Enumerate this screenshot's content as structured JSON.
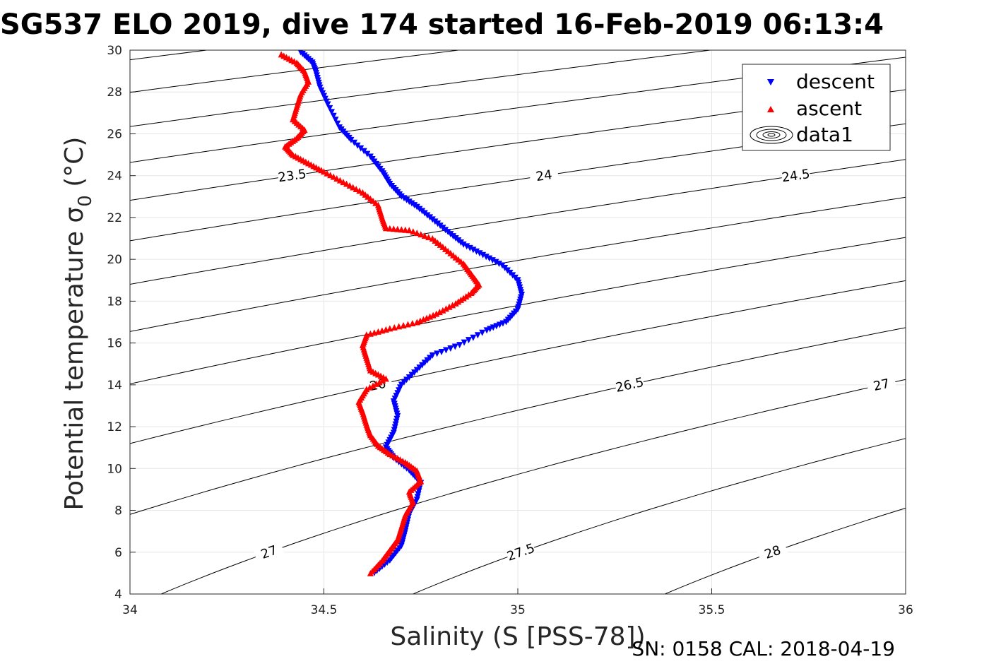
{
  "chart_data": {
    "type": "scatter",
    "title": "SG537 ELO 2019, dive 174 started 16-Feb-2019 06:13:4",
    "xlabel": "Salinity (S [PSS-78])",
    "ylabel": "Potential temperature σ",
    "ylabel_sub": "0",
    "ylabel_unit": " (°C)",
    "footer": "SN: 0158  CAL: 2018-04-19",
    "xlim": [
      34,
      36
    ],
    "ylim": [
      4,
      30
    ],
    "grid": true,
    "x_ticks": [
      "34",
      "34.5",
      "35",
      "35.5",
      "36"
    ],
    "y_ticks": [
      "4",
      "6",
      "8",
      "10",
      "12",
      "14",
      "16",
      "18",
      "20",
      "22",
      "24",
      "26",
      "28",
      "30"
    ],
    "legend": {
      "position": "top-right",
      "entries": [
        {
          "label": "descent",
          "color": "#0000ff",
          "marker": "triangle-down"
        },
        {
          "label": "ascent",
          "color": "#ff0000",
          "marker": "triangle-up"
        },
        {
          "label": "data1",
          "color": "#000000",
          "marker": "contour"
        }
      ]
    },
    "density_contours": [
      "21.5",
      "22",
      "22.5",
      "23",
      "23.5",
      "24",
      "24.5",
      "25",
      "25.5",
      "26",
      "26.5",
      "27",
      "27.5",
      "28"
    ],
    "series": [
      {
        "name": "descent",
        "color": "#0000ff",
        "points": [
          [
            34.44,
            29.9
          ],
          [
            34.47,
            29.4
          ],
          [
            34.48,
            28.9
          ],
          [
            34.49,
            28.2
          ],
          [
            34.51,
            27.4
          ],
          [
            34.54,
            26.3
          ],
          [
            34.57,
            25.7
          ],
          [
            34.62,
            24.9
          ],
          [
            34.65,
            24.2
          ],
          [
            34.67,
            23.6
          ],
          [
            34.7,
            23.0
          ],
          [
            34.74,
            22.5
          ],
          [
            34.78,
            21.9
          ],
          [
            34.82,
            21.3
          ],
          [
            34.86,
            20.7
          ],
          [
            34.91,
            20.2
          ],
          [
            34.96,
            19.7
          ],
          [
            35.0,
            19.0
          ],
          [
            35.01,
            18.3
          ],
          [
            35.0,
            17.6
          ],
          [
            34.97,
            17.0
          ],
          [
            34.92,
            16.6
          ],
          [
            34.85,
            15.9
          ],
          [
            34.78,
            15.4
          ],
          [
            34.74,
            14.7
          ],
          [
            34.7,
            14.0
          ],
          [
            34.68,
            13.2
          ],
          [
            34.69,
            12.5
          ],
          [
            34.68,
            11.7
          ],
          [
            34.66,
            11.0
          ],
          [
            34.68,
            10.5
          ],
          [
            34.72,
            9.9
          ],
          [
            34.75,
            9.3
          ],
          [
            34.74,
            8.5
          ],
          [
            34.72,
            7.8
          ],
          [
            34.71,
            7.0
          ],
          [
            34.7,
            6.3
          ],
          [
            34.67,
            5.6
          ],
          [
            34.63,
            5.0
          ]
        ]
      },
      {
        "name": "ascent",
        "color": "#ff0000",
        "points": [
          [
            34.39,
            29.8
          ],
          [
            34.43,
            29.4
          ],
          [
            34.45,
            29.0
          ],
          [
            34.46,
            28.5
          ],
          [
            34.44,
            27.9
          ],
          [
            34.43,
            27.3
          ],
          [
            34.42,
            26.7
          ],
          [
            34.45,
            26.2
          ],
          [
            34.43,
            25.8
          ],
          [
            34.4,
            25.4
          ],
          [
            34.42,
            25.0
          ],
          [
            34.46,
            24.6
          ],
          [
            34.5,
            24.2
          ],
          [
            34.55,
            23.7
          ],
          [
            34.6,
            23.2
          ],
          [
            34.64,
            22.6
          ],
          [
            34.65,
            22.0
          ],
          [
            34.66,
            21.5
          ],
          [
            34.72,
            21.4
          ],
          [
            34.78,
            21.0
          ],
          [
            34.82,
            20.4
          ],
          [
            34.86,
            19.8
          ],
          [
            34.88,
            19.3
          ],
          [
            34.9,
            18.8
          ],
          [
            34.88,
            18.4
          ],
          [
            34.84,
            17.9
          ],
          [
            34.79,
            17.4
          ],
          [
            34.74,
            17.0
          ],
          [
            34.67,
            16.7
          ],
          [
            34.61,
            16.4
          ],
          [
            34.6,
            15.9
          ],
          [
            34.61,
            15.3
          ],
          [
            34.62,
            14.7
          ],
          [
            34.66,
            14.3
          ],
          [
            34.61,
            13.8
          ],
          [
            34.59,
            13.2
          ],
          [
            34.6,
            12.7
          ],
          [
            34.61,
            12.1
          ],
          [
            34.62,
            11.6
          ],
          [
            34.64,
            11.1
          ],
          [
            34.67,
            10.7
          ],
          [
            34.71,
            10.3
          ],
          [
            34.74,
            9.9
          ],
          [
            34.75,
            9.4
          ],
          [
            34.72,
            8.9
          ],
          [
            34.73,
            8.4
          ],
          [
            34.71,
            7.8
          ],
          [
            34.7,
            7.2
          ],
          [
            34.69,
            6.6
          ],
          [
            34.67,
            6.1
          ],
          [
            34.65,
            5.6
          ],
          [
            34.62,
            5.0
          ]
        ]
      }
    ]
  }
}
